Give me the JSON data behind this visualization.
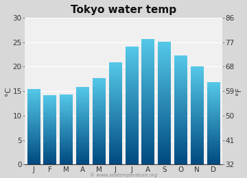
{
  "title": "Tokyo water temp",
  "months": [
    "J",
    "F",
    "M",
    "A",
    "M",
    "J",
    "J",
    "A",
    "S",
    "O",
    "N",
    "D"
  ],
  "values_c": [
    15.3,
    14.0,
    14.2,
    15.7,
    17.5,
    20.8,
    24.0,
    25.5,
    25.0,
    22.2,
    20.0,
    16.7
  ],
  "ylabel_left": "°C",
  "ylabel_right": "°F",
  "yticks_c": [
    0,
    5,
    10,
    15,
    20,
    25,
    30
  ],
  "yticks_f": [
    32,
    41,
    50,
    59,
    68,
    77,
    86
  ],
  "ylim_c": [
    0,
    30
  ],
  "bar_color_top": "#55c8e8",
  "bar_color_bottom": "#004a80",
  "fig_bg_color": "#d8d8d8",
  "plot_bg_color": "#f0f0f0",
  "watermark": "© www.seatemperature.org",
  "title_fontsize": 11,
  "tick_fontsize": 7.5,
  "label_fontsize": 8,
  "watermark_fontsize": 5,
  "bar_width": 0.78
}
